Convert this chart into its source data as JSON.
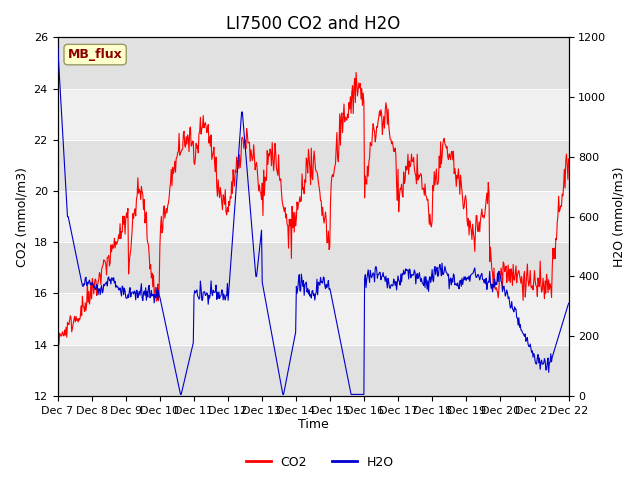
{
  "title": "LI7500 CO2 and H2O",
  "xlabel": "Time",
  "ylabel_left": "CO2 (mmol/m3)",
  "ylabel_right": "H2O (mmol/m3)",
  "ylim_left": [
    12,
    26
  ],
  "ylim_right": [
    0,
    1200
  ],
  "yticks_left": [
    12,
    14,
    16,
    18,
    20,
    22,
    24,
    26
  ],
  "yticks_right": [
    0,
    200,
    400,
    600,
    800,
    1000,
    1200
  ],
  "xtick_positions": [
    0,
    1,
    2,
    3,
    4,
    5,
    6,
    7,
    8,
    9,
    10,
    11,
    12,
    13,
    14,
    15
  ],
  "xtick_labels": [
    "Dec 7",
    "Dec 8",
    "Dec 9",
    "Dec 10",
    "Dec 11",
    "Dec 12",
    "Dec 13",
    "Dec 14",
    "Dec 15",
    "Dec 16",
    "Dec 17",
    "Dec 18",
    "Dec 19",
    "Dec 20",
    "Dec 21",
    "Dec 22"
  ],
  "xlim": [
    0,
    15
  ],
  "watermark_text": "MB_flux",
  "watermark_fg": "#8B0000",
  "watermark_bg": "#FFFFCC",
  "plot_bg_color": "#F0F0F0",
  "co2_color": "#FF0000",
  "h2o_color": "#0000CC",
  "title_fontsize": 12,
  "axis_fontsize": 9,
  "tick_fontsize": 8,
  "legend_co2": "CO2",
  "legend_h2o": "H2O"
}
